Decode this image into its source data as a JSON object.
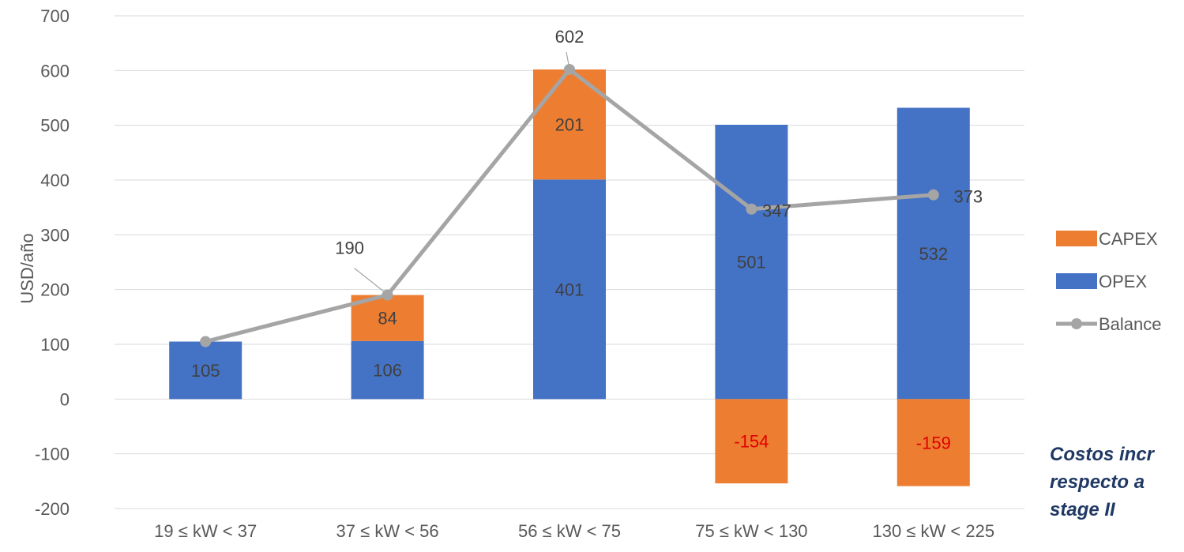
{
  "chart_data": {
    "type": "bar",
    "stacked": true,
    "categories": [
      "19 ≤ kW < 37",
      "37 ≤ kW < 56",
      "56 ≤ kW < 75",
      "75 ≤ kW < 130",
      "130 ≤ kW < 225"
    ],
    "series": [
      {
        "name": "OPEX",
        "type": "bar",
        "color": "#4472c4",
        "values": [
          105,
          106,
          401,
          501,
          532
        ]
      },
      {
        "name": "CAPEX",
        "type": "bar",
        "color": "#ed7d31",
        "values": [
          0,
          84,
          201,
          -154,
          -159
        ]
      },
      {
        "name": "Balance",
        "type": "line",
        "color": "#a5a5a5",
        "values": [
          105,
          190,
          602,
          347,
          373
        ]
      }
    ],
    "data_labels": {
      "OPEX": [
        "105",
        "106",
        "401",
        "501",
        "532"
      ],
      "CAPEX": [
        "",
        "84",
        "201",
        "-154",
        "-159"
      ],
      "Balance": [
        "",
        "190",
        "602",
        "347",
        "373"
      ]
    },
    "negative_label_color": "#e00000",
    "xlabel": "",
    "ylabel": "USD/año",
    "ylim": [
      -200,
      700
    ],
    "yticks": [
      "-200",
      "-100",
      "0",
      "100",
      "200",
      "300",
      "400",
      "500",
      "600",
      "700"
    ],
    "grid": true,
    "legend": {
      "placement": "right",
      "entries": [
        "CAPEX",
        "OPEX",
        "Balance"
      ]
    }
  },
  "note": {
    "lines": [
      "Costos incr",
      "respecto a",
      "stage II"
    ],
    "color": "#1f3864"
  }
}
